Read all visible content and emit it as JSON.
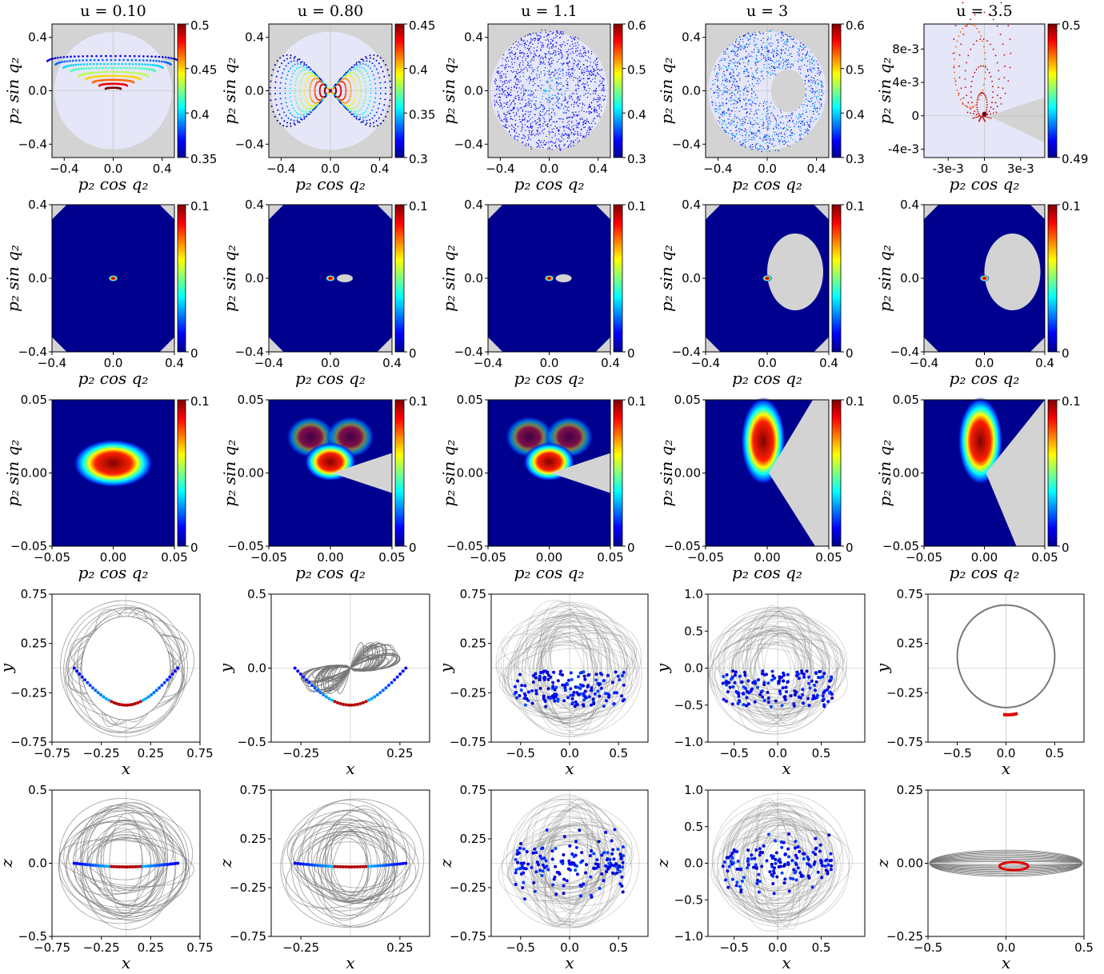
{
  "colors": {
    "grey_bg": "#d3d3d3",
    "lavender": "#e5e6f7",
    "dark_blue": "#00008f",
    "dark_red": "#800000",
    "grey_line": "#777777"
  },
  "labels": {
    "p2cos": "p₂ cos q₂",
    "p2sin": "p₂ sin q₂",
    "x": "x",
    "y": "y",
    "z": "z"
  },
  "chart_data": [
    {
      "type": "scatter",
      "row": 1,
      "col": 1,
      "title": "u = 0.10",
      "xlabel": "p₂ cos q₂",
      "ylabel": "p₂ sin q₂",
      "xlim": [
        -0.5,
        0.5
      ],
      "ylim": [
        -0.5,
        0.5
      ],
      "xticks": [
        "−0.4",
        "0.0",
        "0.4"
      ],
      "yticks": [
        "−0.4",
        "0.0",
        "0.4"
      ],
      "colorbar": {
        "range": [
          0.35,
          0.5
        ],
        "ticks": [
          "0.5",
          "0.45",
          "0.4",
          "0.35"
        ],
        "colormap": "jet"
      }
    },
    {
      "type": "scatter",
      "row": 1,
      "col": 2,
      "title": "u = 0.80",
      "xlabel": "p₂ cos q₂",
      "ylabel": "p₂ sin q₂",
      "xlim": [
        -0.5,
        0.5
      ],
      "ylim": [
        -0.5,
        0.5
      ],
      "xticks": [
        "−0.4",
        "0.0",
        "0.4"
      ],
      "yticks": [
        "−0.4",
        "0.0",
        "0.4"
      ],
      "colorbar": {
        "range": [
          0.3,
          0.45
        ],
        "ticks": [
          "0.45",
          "0.4",
          "0.35",
          "0.3"
        ],
        "colormap": "jet"
      }
    },
    {
      "type": "scatter",
      "row": 1,
      "col": 3,
      "title": "u = 1.1",
      "xlabel": "p₂ cos q₂",
      "ylabel": "p₂ sin q₂",
      "xlim": [
        -0.5,
        0.5
      ],
      "ylim": [
        -0.5,
        0.5
      ],
      "xticks": [
        "−0.4",
        "0.0",
        "0.4"
      ],
      "yticks": [
        "−0.4",
        "0.0",
        "0.4"
      ],
      "colorbar": {
        "range": [
          0.3,
          0.6
        ],
        "ticks": [
          "0.6",
          "0.5",
          "0.4",
          "0.3"
        ],
        "colormap": "jet"
      }
    },
    {
      "type": "scatter",
      "row": 1,
      "col": 4,
      "title": "u = 3",
      "xlabel": "p₂ cos q₂",
      "ylabel": "p₂ sin q₂",
      "xlim": [
        -0.5,
        0.5
      ],
      "ylim": [
        -0.5,
        0.5
      ],
      "xticks": [
        "−0.4",
        "0.0",
        "0.4"
      ],
      "yticks": [
        "−0.4",
        "0.0",
        "0.4"
      ],
      "colorbar": {
        "range": [
          0.3,
          0.6
        ],
        "ticks": [
          "0.6",
          "0.5",
          "0.4",
          "0.3"
        ],
        "colormap": "jet"
      }
    },
    {
      "type": "scatter",
      "row": 1,
      "col": 5,
      "title": "u = 3.5",
      "xlabel": "p₂ cos q₂",
      "ylabel": "p₂ sin q₂",
      "xlim": [
        -0.005,
        0.005
      ],
      "ylim": [
        -0.005,
        0.011
      ],
      "xticks": [
        "-3e-3",
        "0",
        "3e-3"
      ],
      "yticks": [
        "8e-3",
        "4e-3",
        "0",
        "-4e-3"
      ],
      "colorbar": {
        "range": [
          0.49,
          0.5
        ],
        "ticks": [
          "0.5",
          "0.49"
        ],
        "colormap": "jet"
      }
    },
    {
      "type": "heatmap",
      "row": 2,
      "col": 1,
      "xlabel": "p₂ cos q₂",
      "ylabel": "p₂ sin q₂",
      "xlim": [
        -0.4,
        0.4
      ],
      "ylim": [
        -0.4,
        0.4
      ],
      "xticks": [
        "−0.4",
        "0.0",
        "0.4"
      ],
      "yticks": [
        "0.4",
        "0.0",
        "−0.4"
      ],
      "colorbar": {
        "range": [
          0,
          0.1
        ],
        "ticks": [
          "0.1",
          "0"
        ]
      }
    },
    {
      "type": "heatmap",
      "row": 2,
      "col": 2,
      "xlabel": "p₂ cos q₂",
      "ylabel": "p₂ sin q₂",
      "xlim": [
        -0.4,
        0.4
      ],
      "ylim": [
        -0.4,
        0.4
      ],
      "xticks": [
        "−0.4",
        "0.0",
        "0.4"
      ],
      "yticks": [
        "0.4",
        "0.0",
        "−0.4"
      ],
      "colorbar": {
        "range": [
          0,
          0.1
        ],
        "ticks": [
          "0.1",
          "0"
        ]
      }
    },
    {
      "type": "heatmap",
      "row": 2,
      "col": 3,
      "xlabel": "p₂ cos q₂",
      "ylabel": "p₂ sin q₂",
      "xlim": [
        -0.4,
        0.4
      ],
      "ylim": [
        -0.4,
        0.4
      ],
      "xticks": [
        "−0.4",
        "0.0",
        "0.4"
      ],
      "yticks": [
        "0.4",
        "0.0",
        "−0.4"
      ],
      "colorbar": {
        "range": [
          0,
          0.1
        ],
        "ticks": [
          "0.1",
          "0"
        ]
      }
    },
    {
      "type": "heatmap",
      "row": 2,
      "col": 4,
      "xlabel": "p₂ cos q₂",
      "ylabel": "p₂ sin q₂",
      "xlim": [
        -0.4,
        0.4
      ],
      "ylim": [
        -0.4,
        0.4
      ],
      "xticks": [
        "−0.4",
        "0.0",
        "0.4"
      ],
      "yticks": [
        "0.4",
        "0.0",
        "−0.4"
      ],
      "colorbar": {
        "range": [
          0,
          0.1
        ],
        "ticks": [
          "0.1",
          "0"
        ]
      }
    },
    {
      "type": "heatmap",
      "row": 2,
      "col": 5,
      "xlabel": "p₂ cos q₂",
      "ylabel": "p₂ sin q₂",
      "xlim": [
        -0.4,
        0.4
      ],
      "ylim": [
        -0.4,
        0.4
      ],
      "xticks": [
        "−0.4",
        "0.0",
        "0.4"
      ],
      "yticks": [
        "0.4",
        "0.0",
        "−0.4"
      ],
      "colorbar": {
        "range": [
          0,
          0.1
        ],
        "ticks": [
          "0.1",
          "0"
        ]
      }
    },
    {
      "type": "heatmap",
      "row": 3,
      "col": 1,
      "xlabel": "p₂ cos q₂",
      "ylabel": "p₂ sin q₂",
      "xlim": [
        -0.05,
        0.05
      ],
      "ylim": [
        -0.05,
        0.05
      ],
      "xticks": [
        "−0.05",
        "0.00",
        "0.05"
      ],
      "yticks": [
        "0.05",
        "0.00",
        "−0.05"
      ],
      "colorbar": {
        "range": [
          0,
          0.1
        ],
        "ticks": [
          "0.1",
          "0"
        ]
      }
    },
    {
      "type": "heatmap",
      "row": 3,
      "col": 2,
      "xlabel": "p₂ cos q₂",
      "ylabel": "p₂ sin q₂",
      "xlim": [
        -0.05,
        0.05
      ],
      "ylim": [
        -0.05,
        0.05
      ],
      "xticks": [
        "−0.05",
        "0.00",
        "0.05"
      ],
      "yticks": [
        "0.05",
        "0.00",
        "−0.05"
      ],
      "colorbar": {
        "range": [
          0,
          0.1
        ],
        "ticks": [
          "0.1",
          "0"
        ]
      }
    },
    {
      "type": "heatmap",
      "row": 3,
      "col": 3,
      "xlabel": "p₂ cos q₂",
      "ylabel": "p₂ sin q₂",
      "xlim": [
        -0.05,
        0.05
      ],
      "ylim": [
        -0.05,
        0.05
      ],
      "xticks": [
        "−0.05",
        "0.00",
        "0.05"
      ],
      "yticks": [
        "0.05",
        "0.00",
        "−0.05"
      ],
      "colorbar": {
        "range": [
          0,
          0.1
        ],
        "ticks": [
          "0.1",
          "0"
        ]
      }
    },
    {
      "type": "heatmap",
      "row": 3,
      "col": 4,
      "xlabel": "p₂ cos q₂",
      "ylabel": "p₂ sin q₂",
      "xlim": [
        -0.05,
        0.05
      ],
      "ylim": [
        -0.05,
        0.05
      ],
      "xticks": [
        "−0.05",
        "0.00",
        "0.05"
      ],
      "yticks": [
        "0.05",
        "0.00",
        "−0.05"
      ],
      "colorbar": {
        "range": [
          0,
          0.1
        ],
        "ticks": [
          "0.1",
          "0"
        ]
      }
    },
    {
      "type": "heatmap",
      "row": 3,
      "col": 5,
      "xlabel": "p₂ cos q₂",
      "ylabel": "p₂ sin q₂",
      "xlim": [
        -0.05,
        0.05
      ],
      "ylim": [
        -0.05,
        0.05
      ],
      "xticks": [
        "−0.05",
        "0.00",
        "0.05"
      ],
      "yticks": [
        "0.05",
        "0.00",
        "−0.05"
      ],
      "colorbar": {
        "range": [
          0,
          0.1
        ],
        "ticks": [
          "0.1",
          "0"
        ]
      }
    },
    {
      "type": "scatter",
      "row": 4,
      "col": 1,
      "xlabel": "x",
      "ylabel": "y",
      "xlim": [
        -0.75,
        0.75
      ],
      "ylim": [
        -0.75,
        0.75
      ],
      "xticks": [
        "−0.75",
        "−0.25",
        "0.25",
        "0.75"
      ],
      "yticks": [
        "0.75",
        "0.25",
        "−0.25",
        "−0.75"
      ]
    },
    {
      "type": "scatter",
      "row": 4,
      "col": 2,
      "xlabel": "x",
      "ylabel": "y",
      "xlim": [
        -0.4,
        0.4
      ],
      "ylim": [
        -0.5,
        0.5
      ],
      "xticks": [
        "−0.25",
        "0.25"
      ],
      "yticks": [
        "0.5",
        "0.0",
        "−0.5"
      ]
    },
    {
      "type": "scatter",
      "row": 4,
      "col": 3,
      "xlabel": "x",
      "ylabel": "y",
      "xlim": [
        -0.8,
        0.8
      ],
      "ylim": [
        -0.75,
        0.75
      ],
      "xticks": [
        "−0.5",
        "0.0",
        "0.5"
      ],
      "yticks": [
        "0.75",
        "0.25",
        "−0.25",
        "−0.75"
      ]
    },
    {
      "type": "scatter",
      "row": 4,
      "col": 4,
      "xlabel": "x",
      "ylabel": "y",
      "xlim": [
        -0.8,
        1.0
      ],
      "ylim": [
        -1.0,
        1.0
      ],
      "xticks": [
        "−0.5",
        "0.0",
        "0.5"
      ],
      "yticks": [
        "1.0",
        "0.5",
        "0.0",
        "−0.5",
        "−1.0"
      ]
    },
    {
      "type": "scatter",
      "row": 4,
      "col": 5,
      "xlabel": "x",
      "ylabel": "y",
      "xlim": [
        -0.8,
        0.8
      ],
      "ylim": [
        -0.75,
        0.75
      ],
      "xticks": [
        "−0.5",
        "0.0",
        "0.5"
      ],
      "yticks": [
        "0.75",
        "0.25",
        "−0.25",
        "−0.75"
      ]
    },
    {
      "type": "scatter",
      "row": 5,
      "col": 1,
      "xlabel": "x",
      "ylabel": "z",
      "xlim": [
        -0.75,
        0.75
      ],
      "ylim": [
        -0.5,
        0.5
      ],
      "xticks": [
        "−0.75",
        "−0.25",
        "0.25",
        "0.75"
      ],
      "yticks": [
        "0.5",
        "0.0",
        "−0.5"
      ]
    },
    {
      "type": "scatter",
      "row": 5,
      "col": 2,
      "xlabel": "x",
      "ylabel": "z",
      "xlim": [
        -0.4,
        0.4
      ],
      "ylim": [
        -0.75,
        0.75
      ],
      "xticks": [
        "−0.25",
        "0.25"
      ],
      "yticks": [
        "0.75",
        "0.25",
        "−0.25",
        "−0.75"
      ]
    },
    {
      "type": "scatter",
      "row": 5,
      "col": 3,
      "xlabel": "x",
      "ylabel": "z",
      "xlim": [
        -0.8,
        0.8
      ],
      "ylim": [
        -0.75,
        0.75
      ],
      "xticks": [
        "−0.5",
        "0.0",
        "0.5"
      ],
      "yticks": [
        "0.75",
        "0.25",
        "−0.25",
        "−0.75"
      ]
    },
    {
      "type": "scatter",
      "row": 5,
      "col": 4,
      "xlabel": "x",
      "ylabel": "z",
      "xlim": [
        -0.8,
        1.0
      ],
      "ylim": [
        -1.0,
        1.0
      ],
      "xticks": [
        "−0.5",
        "0.0",
        "0.5"
      ],
      "yticks": [
        "1.0",
        "0.5",
        "0.0",
        "−0.5",
        "−1.0"
      ]
    },
    {
      "type": "scatter",
      "row": 5,
      "col": 5,
      "xlabel": "x",
      "ylabel": "z",
      "xlim": [
        -0.5,
        0.5
      ],
      "ylim": [
        -0.25,
        0.25
      ],
      "xticks": [
        "−0.5",
        "0.0",
        "0.5"
      ],
      "yticks": [
        "0.25",
        "0.00",
        "−0.25"
      ]
    }
  ]
}
